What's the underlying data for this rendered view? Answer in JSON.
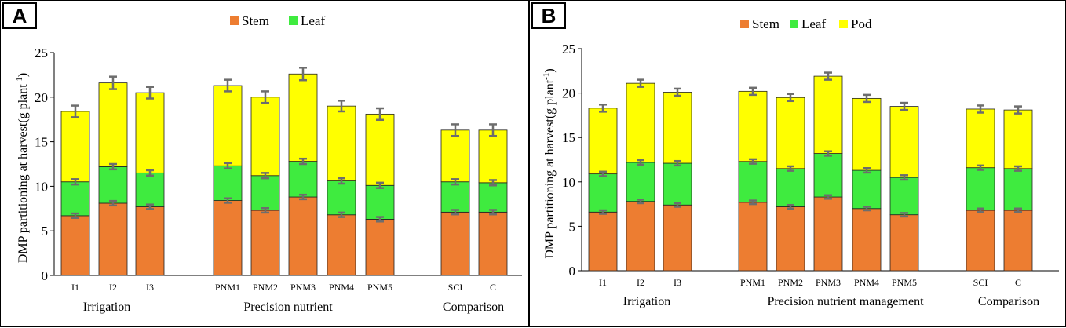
{
  "chart_data": [
    {
      "panel": "A",
      "type": "bar",
      "stacked": true,
      "ylabel_main": "DMP partitioning at harvest(g plant",
      "ylabel_sup": "-1",
      "ylabel_close": ")",
      "ylim": [
        0,
        25
      ],
      "yticks": [
        0,
        5,
        10,
        15,
        20,
        25
      ],
      "legend_position": "top-center",
      "categories": [
        "I1",
        "I2",
        "I3",
        "PNM1",
        "PNM2",
        "PNM3",
        "PNM4",
        "PNM5",
        "SCI",
        "C"
      ],
      "groups": [
        {
          "label": "Irrigation",
          "count": 3
        },
        {
          "label": "Precision nutrient",
          "count": 5
        },
        {
          "label": "Comparison",
          "count": 2
        }
      ],
      "series": [
        {
          "name": "Stem",
          "color": "#ED7D31",
          "values": [
            6.7,
            8.1,
            7.7,
            8.4,
            7.3,
            8.8,
            6.8,
            6.3,
            7.1,
            7.1
          ]
        },
        {
          "name": "Leaf",
          "color": "#3FEB3F",
          "values": [
            3.8,
            4.1,
            3.8,
            3.9,
            3.9,
            4.0,
            3.8,
            3.8,
            3.4,
            3.3
          ]
        },
        {
          "name": "Pod",
          "color": "#FFFF00",
          "values": [
            7.9,
            9.4,
            9.0,
            9.0,
            8.8,
            9.8,
            8.4,
            8.0,
            5.8,
            5.9
          ]
        }
      ],
      "legend_series": [
        "Stem",
        "Leaf"
      ],
      "errors": [
        [
          0.25,
          0.25,
          0.25,
          0.25,
          0.25,
          0.25,
          0.25,
          0.25,
          0.25,
          0.25
        ],
        [
          0.3,
          0.3,
          0.3,
          0.3,
          0.3,
          0.3,
          0.3,
          0.3,
          0.3,
          0.3
        ],
        [
          0.65,
          0.7,
          0.65,
          0.65,
          0.65,
          0.7,
          0.6,
          0.65,
          0.65,
          0.65
        ]
      ]
    },
    {
      "panel": "B",
      "type": "bar",
      "stacked": true,
      "ylabel_main": "DMP partitioning at harvest(g plant",
      "ylabel_sup": "-1",
      "ylabel_close": ")",
      "ylim": [
        0,
        25
      ],
      "yticks": [
        0,
        5,
        10,
        15,
        20,
        25
      ],
      "legend_position": "top-center",
      "categories": [
        "I1",
        "I2",
        "I3",
        "PNM1",
        "PNM2",
        "PNM3",
        "PNM4",
        "PNM5",
        "SCI",
        "C"
      ],
      "groups": [
        {
          "label": "Irrigation",
          "count": 3
        },
        {
          "label": "Precision nutrient management",
          "count": 5
        },
        {
          "label": "Comparison",
          "count": 2
        }
      ],
      "series": [
        {
          "name": "Stem",
          "color": "#ED7D31",
          "values": [
            6.6,
            7.8,
            7.4,
            7.7,
            7.2,
            8.3,
            7.0,
            6.3,
            6.8,
            6.8
          ]
        },
        {
          "name": "Leaf",
          "color": "#3FEB3F",
          "values": [
            4.3,
            4.4,
            4.7,
            4.6,
            4.3,
            4.9,
            4.3,
            4.2,
            4.8,
            4.7
          ]
        },
        {
          "name": "Pod",
          "color": "#FFFF00",
          "values": [
            7.4,
            8.9,
            8.0,
            7.9,
            8.0,
            8.7,
            8.1,
            8.0,
            6.6,
            6.6
          ]
        }
      ],
      "legend_series": [
        "Stem",
        "Leaf",
        "Pod"
      ],
      "errors": [
        [
          0.2,
          0.2,
          0.2,
          0.2,
          0.2,
          0.2,
          0.2,
          0.2,
          0.2,
          0.2
        ],
        [
          0.25,
          0.25,
          0.25,
          0.25,
          0.25,
          0.25,
          0.25,
          0.25,
          0.25,
          0.25
        ],
        [
          0.4,
          0.4,
          0.4,
          0.4,
          0.4,
          0.4,
          0.4,
          0.4,
          0.4,
          0.4
        ]
      ]
    }
  ]
}
